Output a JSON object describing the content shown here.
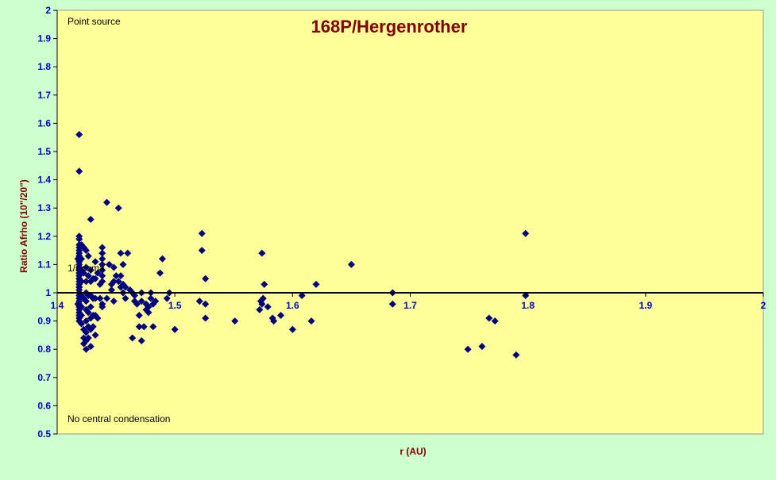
{
  "colors": {
    "outer_background": "#ccffcc",
    "plot_background": "#ffff99",
    "marker": "#000080",
    "title": "#800000",
    "axis_label": "#800000",
    "tick_label": "#0000cc"
  },
  "chart_data": {
    "type": "scatter",
    "title": "168P/Hergenrother",
    "xlabel": "r (AU)",
    "ylabel": "Ratio Afrho (10\"/20\")",
    "xlim": [
      1.4,
      2.0
    ],
    "ylim": [
      0.5,
      2.0
    ],
    "x_ticks": [
      "1.4",
      "1.5",
      "1.6",
      "1.7",
      "1.8",
      "1.9",
      "2"
    ],
    "y_ticks": [
      "0.5",
      "0.6",
      "0.7",
      "0.8",
      "0.9",
      "1",
      "1.1",
      "1.2",
      "1.3",
      "1.4",
      "1.5",
      "1.6",
      "1.7",
      "1.8",
      "1.9",
      "2"
    ],
    "grid": false,
    "marker": "diamond",
    "annotations": {
      "top": "Point source",
      "bottom": "No central condensation",
      "reference": "1/r coma"
    },
    "series": [
      {
        "x": [
          1.4176,
          1.4176,
          1.4187,
          1.4187,
          1.4187,
          1.4187,
          1.4187,
          1.4187,
          1.4187,
          1.4187,
          1.4187,
          1.4187,
          1.4187,
          1.4187,
          1.4187,
          1.4187,
          1.4187,
          1.4187,
          1.4187,
          1.4187,
          1.4187,
          1.4187,
          1.4187,
          1.4187,
          1.4187,
          1.4187,
          1.4187,
          1.4187,
          1.4187,
          1.4187,
          1.4187,
          1.4187,
          1.4187,
          1.4187,
          1.4187,
          1.4187,
          1.4187,
          1.4187,
          1.4206,
          1.4206,
          1.4206,
          1.4206,
          1.4206,
          1.4206,
          1.4206,
          1.4206,
          1.4226,
          1.4226,
          1.4226,
          1.4226,
          1.4226,
          1.4226,
          1.4246,
          1.4246,
          1.4246,
          1.4246,
          1.4246,
          1.4246,
          1.4246,
          1.4246,
          1.4246,
          1.4246,
          1.4265,
          1.4265,
          1.4265,
          1.4265,
          1.4265,
          1.4265,
          1.4285,
          1.4285,
          1.4285,
          1.4285,
          1.4285,
          1.4285,
          1.4285,
          1.4285,
          1.4305,
          1.4305,
          1.4305,
          1.4305,
          1.4324,
          1.4324,
          1.4324,
          1.4324,
          1.4324,
          1.4344,
          1.4344,
          1.4364,
          1.4364,
          1.4383,
          1.4383,
          1.4383,
          1.4383,
          1.4383,
          1.4383,
          1.4383,
          1.4383,
          1.4383,
          1.4422,
          1.4422,
          1.4442,
          1.4462,
          1.4462,
          1.4481,
          1.4481,
          1.4481,
          1.4501,
          1.4521,
          1.4521,
          1.454,
          1.454,
          1.454,
          1.456,
          1.456,
          1.456,
          1.458,
          1.458,
          1.4599,
          1.4619,
          1.4639,
          1.4639,
          1.4658,
          1.4658,
          1.4678,
          1.4697,
          1.4697,
          1.4717,
          1.4717,
          1.4717,
          1.4737,
          1.4756,
          1.4756,
          1.4776,
          1.4776,
          1.4796,
          1.4796,
          1.4815,
          1.4815,
          1.4835,
          1.4874,
          1.4894,
          1.4933,
          1.4953,
          1.5,
          1.521,
          1.523,
          1.523,
          1.526,
          1.526,
          1.526,
          1.551,
          1.572,
          1.573,
          1.574,
          1.574,
          1.575,
          1.576,
          1.579,
          1.583,
          1.584,
          1.59,
          1.6,
          1.608,
          1.616,
          1.62,
          1.65,
          1.685,
          1.685,
          1.749,
          1.761,
          1.767,
          1.772,
          1.79,
          1.798,
          1.798
        ],
        "y": [
          1.12,
          0.96,
          1.56,
          1.43,
          1.2,
          1.19,
          1.17,
          1.16,
          1.15,
          1.14,
          1.13,
          1.12,
          1.11,
          1.1,
          1.09,
          1.08,
          1.07,
          1.06,
          1.05,
          1.04,
          1.03,
          1.02,
          1.01,
          1.0,
          0.99,
          0.98,
          0.97,
          0.96,
          0.95,
          0.94,
          0.93,
          0.92,
          0.91,
          0.9,
          1.13,
          1.05,
          1.02,
          0.98,
          1.17,
          1.12,
          1.08,
          1.04,
          0.99,
          0.95,
          0.92,
          0.89,
          1.16,
          1.07,
          0.98,
          0.87,
          0.84,
          0.82,
          1.15,
          1.09,
          1.04,
          1.0,
          0.97,
          0.94,
          0.9,
          0.86,
          0.83,
          0.8,
          1.13,
          1.06,
          0.99,
          0.93,
          0.88,
          0.84,
          1.26,
          1.08,
          1.04,
          0.99,
          0.95,
          0.91,
          0.87,
          0.81,
          1.05,
          0.98,
          0.92,
          0.88,
          1.11,
          1.05,
          0.98,
          0.92,
          0.85,
          1.07,
          0.91,
          1.03,
          0.98,
          1.16,
          1.14,
          1.12,
          1.1,
          1.08,
          1.06,
          1.04,
          0.96,
          0.95,
          1.32,
          0.98,
          1.1,
          1.03,
          1.01,
          1.09,
          1.04,
          0.97,
          1.06,
          1.3,
          1.04,
          1.14,
          1.06,
          1.02,
          1.1,
          1.03,
          1.0,
          1.02,
          0.98,
          1.14,
          1.01,
          0.84,
          1.0,
          0.99,
          0.97,
          0.96,
          0.92,
          0.88,
          0.83,
          1.0,
          0.97,
          0.88,
          0.96,
          0.94,
          0.95,
          0.93,
          1.0,
          0.98,
          0.96,
          0.88,
          0.97,
          1.07,
          1.12,
          0.98,
          1.0,
          0.87,
          0.97,
          1.15,
          1.21,
          1.05,
          0.91,
          0.96,
          0.9,
          0.94,
          0.97,
          1.14,
          0.96,
          0.98,
          1.03,
          0.95,
          0.91,
          0.9,
          0.92,
          0.87,
          0.99,
          0.9,
          1.03,
          1.1,
          1.0,
          0.96,
          0.8,
          0.81,
          0.91,
          0.9,
          0.78,
          1.21,
          0.99
        ]
      }
    ]
  }
}
